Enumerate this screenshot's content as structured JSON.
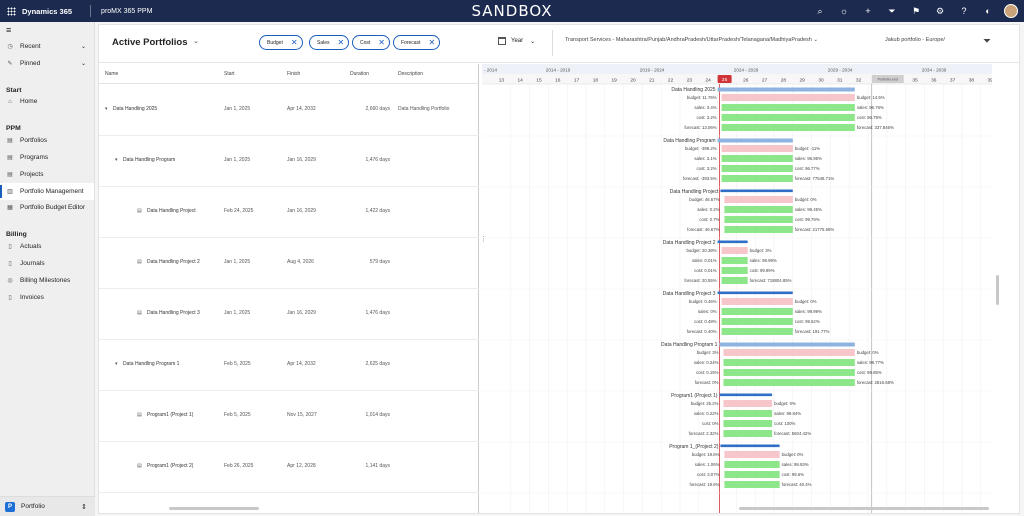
{
  "topbar": {
    "app_name": "Dynamics 365",
    "env_name": "proMX 365 PPM",
    "banner": "SANDBOX"
  },
  "sidebar": {
    "recent": "Recent",
    "pinned": "Pinned",
    "group_start": "Start",
    "home": "Home",
    "group_ppm": "PPM",
    "ppm_items": [
      "Portfolios",
      "Programs",
      "Projects",
      "Portfolio Management",
      "Portfolio Budget Editor"
    ],
    "group_billing": "Billing",
    "billing_items": [
      "Actuals",
      "Journals",
      "Billing Milestones",
      "Invoices"
    ],
    "area_badge": "P",
    "area_name": "Portfolio"
  },
  "header": {
    "title": "Active Portfolios",
    "chips": [
      "Budget",
      "Sales",
      "Cost",
      "Forecast"
    ],
    "period": "Year",
    "filter_1": "Transport Services - Maharashtra/Punjab/AndhraPradesh/UttarPradesh/Telanagana/MadhiyaPradesh",
    "filter_2": "Jakub portfolio - Europe/"
  },
  "grid": {
    "columns": [
      "Name",
      "Start",
      "Finish",
      "Duration",
      "Description"
    ],
    "rows": [
      {
        "name": "Data Handling 2025",
        "start": "Jan 1, 2025",
        "finish": "Apr 14, 2032",
        "duration": "2,660 days",
        "description": "Data Handling Portfolio",
        "level": 0,
        "expand": "▾",
        "type": "portfolio"
      },
      {
        "name": "Data Handling Program",
        "start": "Jan 1, 2025",
        "finish": "Jan 16, 2029",
        "duration": "1,476 days",
        "description": "",
        "level": 1,
        "expand": "▾",
        "type": "program"
      },
      {
        "name": "Data Handling Project",
        "start": "Feb 24, 2025",
        "finish": "Jan 16, 2029",
        "duration": "1,422 days",
        "description": "",
        "level": 2,
        "expand": "",
        "type": "project"
      },
      {
        "name": "Data Handling Project 2",
        "start": "Jan 1, 2025",
        "finish": "Aug 4, 2026",
        "duration": "579 days",
        "description": "",
        "level": 2,
        "expand": "",
        "type": "project"
      },
      {
        "name": "Data Handling Project 3",
        "start": "Jan 1, 2025",
        "finish": "Jan 16, 2029",
        "duration": "1,476 days",
        "description": "",
        "level": 2,
        "expand": "",
        "type": "project"
      },
      {
        "name": "Data Handling Program 1",
        "start": "Feb 5, 2025",
        "finish": "Apr 14, 2032",
        "duration": "2,625 days",
        "description": "",
        "level": 1,
        "expand": "▾",
        "type": "program"
      },
      {
        "name": "Program1 (Project 1)",
        "start": "Feb 5, 2025",
        "finish": "Nov 15, 2027",
        "duration": "1,014 days",
        "description": "",
        "level": 2,
        "expand": "",
        "type": "project"
      },
      {
        "name": "Program1 (Project 2)",
        "start": "Feb 26, 2025",
        "finish": "Apr 12, 2028",
        "duration": "1,141 days",
        "description": "",
        "level": 2,
        "expand": "",
        "type": "project"
      }
    ]
  },
  "timeline": {
    "top_labels": [
      "- 2014",
      "2014 - 2019",
      "2019 - 2024",
      "2024 - 2029",
      "2029 - 2034",
      "2034 - 2039"
    ],
    "years": [
      "13",
      "14",
      "15",
      "16",
      "17",
      "18",
      "19",
      "20",
      "21",
      "22",
      "23",
      "24",
      "25",
      "26",
      "27",
      "28",
      "29",
      "30",
      "31",
      "32",
      "33",
      "34",
      "35",
      "36",
      "37",
      "38",
      "39"
    ],
    "today_label": "25",
    "end_marker_label": "Portfolio end"
  },
  "gantt_rows": [
    {
      "title": "Data Handling 2025",
      "start": 2025.0,
      "finish": 2032.3,
      "metrics": [
        {
          "key": "Budget",
          "left": "budget: 11.76%",
          "right": "budget: 14.5%",
          "color": "#f7c6cb"
        },
        {
          "key": "Sales",
          "left": "sales: 3.4%",
          "right": "sales: 96.76%",
          "color": "#8ee68a"
        },
        {
          "key": "Cost",
          "left": "cost: 3.2%",
          "right": "cost: 96.79%",
          "color": "#8ee68a"
        },
        {
          "key": "Forecast",
          "left": "forecast: 13.06%",
          "right": "forecast: 337.846%",
          "color": "#8ee68a"
        }
      ]
    },
    {
      "title": "Data Handling Program",
      "start": 2025.0,
      "finish": 2029.0,
      "metrics": [
        {
          "key": "Budget",
          "left": "budget: -399.2%",
          "right": "budget: -11%",
          "color": "#f7c6cb"
        },
        {
          "key": "Sales",
          "left": "sales: 3.1%",
          "right": "sales: 96.95%",
          "color": "#8ee68a"
        },
        {
          "key": "Cost",
          "left": "cost: 3.2%",
          "right": "cost: 96.77%",
          "color": "#8ee68a"
        },
        {
          "key": "Forecast",
          "left": "forecast: -393.5%",
          "right": "forecast: 77548.71%",
          "color": "#8ee68a"
        }
      ]
    },
    {
      "title": "Data Handling Project",
      "start": 2025.15,
      "finish": 2029.0,
      "metrics": [
        {
          "key": "Budget",
          "left": "budget: 46.67%",
          "right": "budget: 0%",
          "color": "#f7c6cb"
        },
        {
          "key": "Sales",
          "left": "sales: 0.2%",
          "right": "sales: 99.45%",
          "color": "#8ee68a"
        },
        {
          "key": "Cost",
          "left": "cost: 0.7%",
          "right": "cost: 99.79%",
          "color": "#8ee68a"
        },
        {
          "key": "Forecast",
          "left": "forecast: 46.67%",
          "right": "forecast: 21775.56%",
          "color": "#8ee68a"
        }
      ]
    },
    {
      "title": "Data Handling Project 2",
      "start": 2025.0,
      "finish": 2026.6,
      "metrics": [
        {
          "key": "Budget",
          "left": "budget: 20.38%",
          "right": "budget: 3%",
          "color": "#f7c6cb"
        },
        {
          "key": "Sales",
          "left": "sales: 0.01%",
          "right": "sales: 99.99%",
          "color": "#8ee68a"
        },
        {
          "key": "Cost",
          "left": "cost: 0.01%",
          "right": "cost: 99.99%",
          "color": "#8ee68a"
        },
        {
          "key": "Forecast",
          "left": "forecast: 20.55%",
          "right": "forecast: 718804.85%",
          "color": "#8ee68a"
        }
      ]
    },
    {
      "title": "Data Handling Project 3",
      "start": 2025.0,
      "finish": 2029.0,
      "metrics": [
        {
          "key": "Budget",
          "left": "budget: 0.46%",
          "right": "budget: 0%",
          "color": "#f7c6cb"
        },
        {
          "key": "Sales",
          "left": "sales: 0%",
          "right": "sales: 99.99%",
          "color": "#8ee68a"
        },
        {
          "key": "Cost",
          "left": "cost: 0.48%",
          "right": "cost: 99.52%",
          "color": "#8ee68a"
        },
        {
          "key": "Forecast",
          "left": "forecast: 0.40%",
          "right": "forecast: 191.77%",
          "color": "#8ee68a"
        }
      ]
    },
    {
      "title": "Data Handling Program 1",
      "start": 2025.1,
      "finish": 2032.3,
      "metrics": [
        {
          "key": "Budget",
          "left": "budget: 3%",
          "right": "budget: 0%",
          "color": "#f7c6cb"
        },
        {
          "key": "Sales",
          "left": "sales: 0.24%",
          "right": "sales: 99.77%",
          "color": "#8ee68a"
        },
        {
          "key": "Cost",
          "left": "cost: 0.15%",
          "right": "cost: 99.85%",
          "color": "#8ee68a"
        },
        {
          "key": "Forecast",
          "left": "forecast: 0%",
          "right": "forecast: 2816.68%",
          "color": "#8ee68a"
        }
      ]
    },
    {
      "title": "Program1 (Project 1)",
      "start": 2025.1,
      "finish": 2027.9,
      "metrics": [
        {
          "key": "Budget",
          "left": "budget: 25.2%",
          "right": "budget: 0%",
          "color": "#f7c6cb"
        },
        {
          "key": "Sales",
          "left": "sales: 0.22%",
          "right": "sales: 99.84%",
          "color": "#8ee68a"
        },
        {
          "key": "Cost",
          "left": "cost: 0%",
          "right": "cost: 100%",
          "color": "#8ee68a"
        },
        {
          "key": "Forecast",
          "left": "forecast: 2.32%",
          "right": "forecast: 5504.42%",
          "color": "#8ee68a"
        }
      ]
    },
    {
      "title": "Program 1_(Project 2)",
      "start": 2025.15,
      "finish": 2028.3,
      "metrics": [
        {
          "key": "Budget",
          "left": "budget: 19.6%",
          "right": "budget: 0%",
          "color": "#f7c6cb"
        },
        {
          "key": "Sales",
          "left": "sales: 1.06%",
          "right": "sales: 99.93%",
          "color": "#8ee68a"
        },
        {
          "key": "Cost",
          "left": "cost: 3.07%",
          "right": "cost: 99.6%",
          "color": "#8ee68a"
        },
        {
          "key": "Forecast",
          "left": "forecast: 19.6%",
          "right": "forecast: 40.4%",
          "color": "#8ee68a"
        }
      ]
    }
  ],
  "colors": {
    "topbar": "#1b2a4e",
    "accent": "#1b5fbd",
    "summary_bar": "#8fb3e0",
    "project_bar": "#2f6fc7",
    "budget_bar": "#f7c6cb",
    "good_bar": "#8ee68a",
    "today": "#d13438"
  }
}
